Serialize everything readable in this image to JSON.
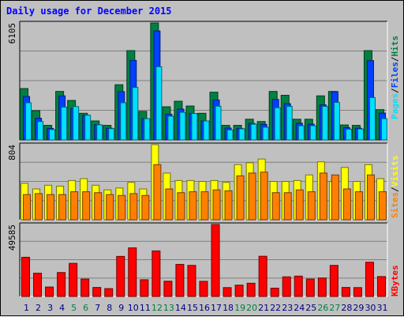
{
  "title": "Daily usage for December 2015",
  "colors": {
    "hits": "#008040",
    "files": "#0040ff",
    "pages": "#00e0ff",
    "visits": "#ffff00",
    "sites": "#ff8000",
    "kbytes": "#ff0000",
    "weekend_label": "#008040",
    "weekday_label": "#000080"
  },
  "panels": {
    "top": {
      "max_label": "6105",
      "legend": [
        "Pages",
        "Files",
        "Hits"
      ]
    },
    "middle": {
      "max_label": "804",
      "legend": [
        "Sites",
        "Visits"
      ]
    },
    "bottom": {
      "max_label": "49585",
      "legend": [
        "KBytes"
      ]
    }
  },
  "chart_data": [
    {
      "type": "bar",
      "name": "hits-files-pages",
      "categories": [
        "1",
        "2",
        "3",
        "4",
        "5",
        "6",
        "7",
        "8",
        "9",
        "10",
        "11",
        "12",
        "13",
        "14",
        "15",
        "16",
        "17",
        "18",
        "19",
        "20",
        "21",
        "22",
        "23",
        "24",
        "25",
        "26",
        "27",
        "28",
        "29",
        "30",
        "31"
      ],
      "weekend_days": [
        5,
        6,
        12,
        13,
        19,
        20,
        26,
        27
      ],
      "ylim": [
        0,
        6105
      ],
      "series": [
        {
          "name": "Hits",
          "values": [
            2680,
            1530,
            760,
            2530,
            2060,
            1390,
            990,
            760,
            2880,
            4660,
            1490,
            6105,
            1730,
            2020,
            1770,
            1390,
            2490,
            760,
            760,
            1080,
            960,
            2530,
            2330,
            1080,
            1080,
            2300,
            2530,
            780,
            760,
            4660,
            1580
          ]
        },
        {
          "name": "Files",
          "values": [
            2270,
            1130,
            600,
            2300,
            1640,
            1290,
            790,
            610,
            2520,
            4150,
            1110,
            5690,
            1340,
            1610,
            1380,
            990,
            2080,
            620,
            600,
            860,
            810,
            2110,
            1890,
            870,
            820,
            1830,
            2520,
            640,
            610,
            4140,
            1400
          ]
        },
        {
          "name": "Pages",
          "values": [
            1940,
            960,
            540,
            1710,
            1740,
            1290,
            790,
            590,
            1940,
            2740,
            1110,
            3820,
            1240,
            1440,
            1380,
            990,
            1760,
            520,
            580,
            820,
            660,
            1680,
            1750,
            740,
            740,
            1750,
            1960,
            560,
            570,
            2210,
            1110
          ]
        }
      ]
    },
    {
      "type": "bar",
      "name": "visits-sites",
      "categories": [
        "1",
        "2",
        "3",
        "4",
        "5",
        "6",
        "7",
        "8",
        "9",
        "10",
        "11",
        "12",
        "13",
        "14",
        "15",
        "16",
        "17",
        "18",
        "19",
        "20",
        "21",
        "22",
        "23",
        "24",
        "25",
        "26",
        "27",
        "28",
        "29",
        "30",
        "31"
      ],
      "ylim": [
        0,
        804
      ],
      "series": [
        {
          "name": "Visits",
          "values": [
            390,
            330,
            370,
            360,
            420,
            440,
            370,
            320,
            340,
            400,
            330,
            804,
            500,
            420,
            420,
            410,
            420,
            400,
            590,
            610,
            650,
            410,
            410,
            420,
            480,
            620,
            410,
            560,
            410,
            590,
            440
          ]
        },
        {
          "name": "Sites",
          "values": [
            270,
            280,
            270,
            270,
            300,
            300,
            290,
            270,
            260,
            280,
            260,
            590,
            330,
            290,
            300,
            300,
            320,
            310,
            470,
            500,
            510,
            290,
            290,
            320,
            300,
            500,
            480,
            330,
            300,
            480,
            300
          ]
        }
      ]
    },
    {
      "type": "bar",
      "name": "kbytes",
      "categories": [
        "1",
        "2",
        "3",
        "4",
        "5",
        "6",
        "7",
        "8",
        "9",
        "10",
        "11",
        "12",
        "13",
        "14",
        "15",
        "16",
        "17",
        "18",
        "19",
        "20",
        "21",
        "22",
        "23",
        "24",
        "25",
        "26",
        "27",
        "28",
        "29",
        "30",
        "31"
      ],
      "ylim": [
        0,
        49585
      ],
      "series": [
        {
          "name": "KBytes",
          "values": [
            27000,
            16000,
            6500,
            16500,
            22800,
            12000,
            6200,
            5400,
            27600,
            33500,
            11500,
            31400,
            10500,
            22100,
            21400,
            10400,
            49585,
            6100,
            7800,
            9100,
            27700,
            5700,
            13500,
            14000,
            12000,
            12700,
            21400,
            6200,
            6100,
            23600,
            13700
          ]
        }
      ]
    }
  ]
}
